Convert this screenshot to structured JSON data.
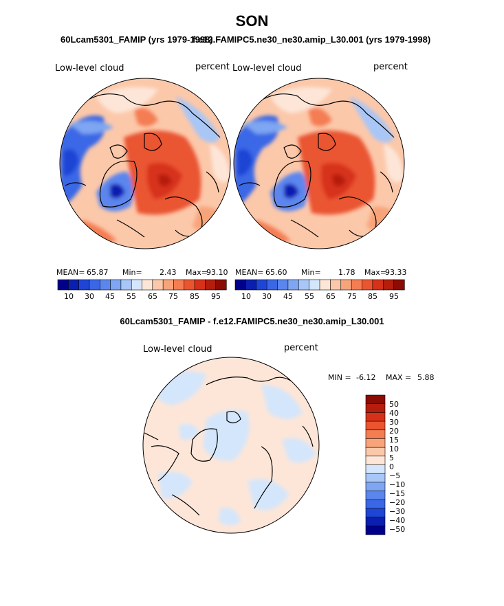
{
  "page": {
    "title": "SON",
    "left_case_title": "60Lcam5301_FAMIP (yrs 1979-1998)",
    "right_case_title": "f.e12.FAMIPC5.ne30_ne30.amip_L30.001 (yrs 1979-1998)",
    "diff_title": "60Lcam5301_FAMIP - f.e12.FAMIPC5.ne30_ne30.amip_L30.001"
  },
  "chart_data": [
    {
      "type": "heatmap",
      "projection": "polar stereographic, North Pole",
      "variable": "Low-level cloud",
      "units": "percent",
      "stats": {
        "mean_label": "MEAN=",
        "mean": "65.87",
        "min_label": "Min=",
        "min": "2.43",
        "max_label": "Max=",
        "max": "93.10"
      },
      "colorbar": {
        "levels": [
          5,
          10,
          20,
          30,
          40,
          45,
          50,
          55,
          60,
          65,
          70,
          75,
          80,
          85,
          90,
          95
        ],
        "tick_labels": [
          "10",
          "30",
          "45",
          "55",
          "65",
          "75",
          "85",
          "95"
        ],
        "colors": [
          "#00008b",
          "#0a1fb0",
          "#1f45d6",
          "#3a67e6",
          "#5b86ee",
          "#7ea6f2",
          "#a8c6f6",
          "#d4e6fb",
          "#fde6d8",
          "#fcc8aa",
          "#f8a47a",
          "#f47d52",
          "#ea5530",
          "#d7311a",
          "#b51d0c",
          "#8a0c04"
        ]
      }
    },
    {
      "type": "heatmap",
      "projection": "polar stereographic, North Pole",
      "variable": "Low-level cloud",
      "units": "percent",
      "stats": {
        "mean_label": "MEAN=",
        "mean": "65.60",
        "min_label": "Min=",
        "min": "1.78",
        "max_label": "Max=",
        "max": "93.33"
      },
      "colorbar": {
        "levels": [
          5,
          10,
          20,
          30,
          40,
          45,
          50,
          55,
          60,
          65,
          70,
          75,
          80,
          85,
          90,
          95
        ],
        "tick_labels": [
          "10",
          "30",
          "45",
          "55",
          "65",
          "75",
          "85",
          "95"
        ],
        "colors": [
          "#00008b",
          "#0a1fb0",
          "#1f45d6",
          "#3a67e6",
          "#5b86ee",
          "#7ea6f2",
          "#a8c6f6",
          "#d4e6fb",
          "#fde6d8",
          "#fcc8aa",
          "#f8a47a",
          "#f47d52",
          "#ea5530",
          "#d7311a",
          "#b51d0c",
          "#8a0c04"
        ]
      }
    },
    {
      "type": "heatmap",
      "projection": "polar stereographic, North Pole",
      "variable": "Low-level cloud",
      "units": "percent",
      "stats": {
        "min_label": "MIN =",
        "min": "-6.12",
        "max_label": "MAX =",
        "max": "5.88"
      },
      "colorbar": {
        "levels": [
          -50,
          -40,
          -30,
          -20,
          -15,
          -10,
          -5,
          0,
          5,
          10,
          15,
          20,
          30,
          40,
          50
        ],
        "tick_labels": [
          "50",
          "40",
          "30",
          "20",
          "15",
          "10",
          "5",
          "0",
          "−5",
          "−10",
          "−15",
          "−20",
          "−30",
          "−40",
          "−50"
        ],
        "colors": [
          "#8a0c04",
          "#b51d0c",
          "#d7311a",
          "#ea5530",
          "#f47d52",
          "#f8a47a",
          "#fcc8aa",
          "#fde6d8",
          "#d4e6fb",
          "#a8c6f6",
          "#7ea6f2",
          "#5b86ee",
          "#3a67e6",
          "#1f45d6",
          "#0a1fb0",
          "#00008b"
        ]
      }
    }
  ]
}
